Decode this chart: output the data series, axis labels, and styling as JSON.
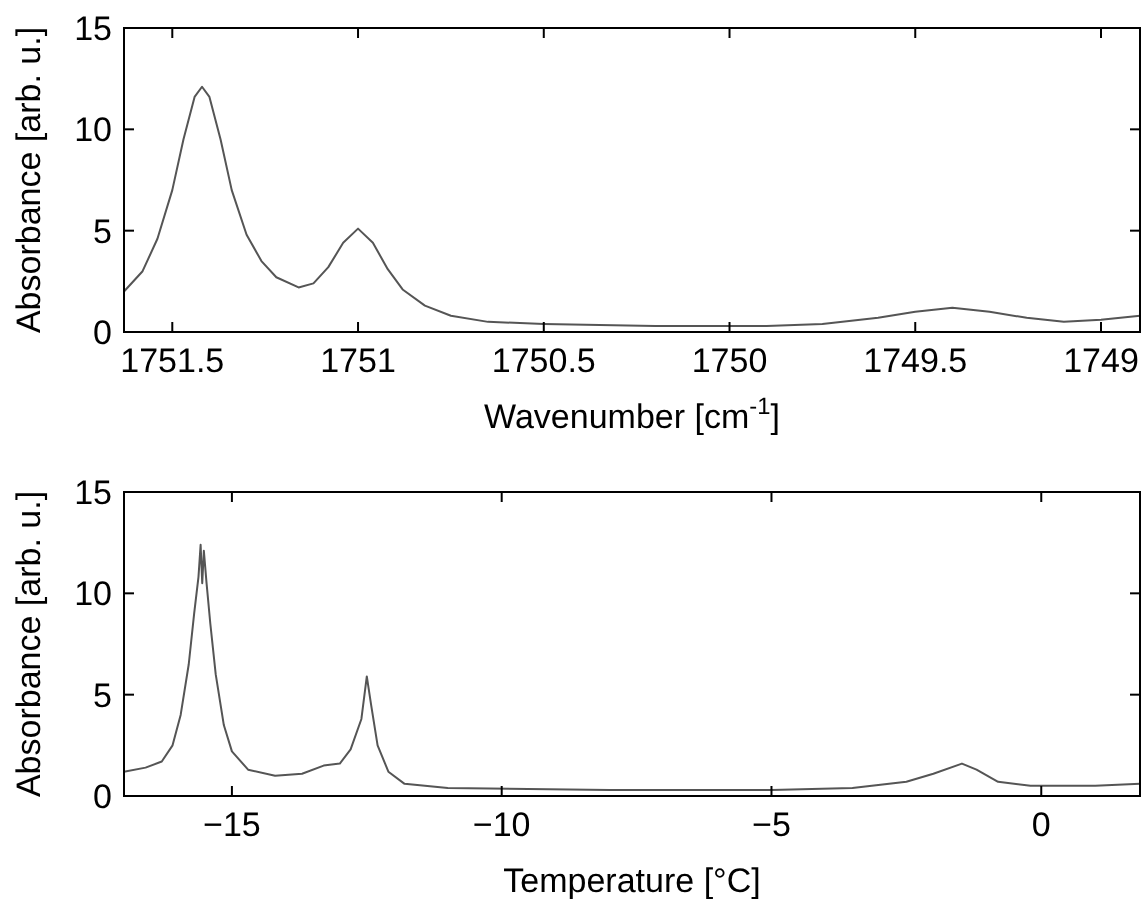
{
  "chart_data": [
    {
      "type": "line",
      "xlabel": "Wavenumber [cm$^{-1}$]",
      "ylabel": "Absorbance [arb. u.]",
      "xlim": [
        1751.63,
        1748.895
      ],
      "xticks": [
        1751.5,
        1751,
        1750.5,
        1750,
        1749.5,
        1749
      ],
      "ylim": [
        0,
        15
      ],
      "yticks": [
        0,
        5,
        10,
        15
      ],
      "marker": "none",
      "line_style": "solid",
      "series": [
        {
          "color": "#555555",
          "x": [
            1751.63,
            1751.58,
            1751.54,
            1751.5,
            1751.47,
            1751.44,
            1751.42,
            1751.4,
            1751.37,
            1751.34,
            1751.3,
            1751.26,
            1751.22,
            1751.16,
            1751.12,
            1751.08,
            1751.04,
            1751,
            1750.96,
            1750.92,
            1750.88,
            1750.82,
            1750.75,
            1750.65,
            1750.5,
            1750.2,
            1749.9,
            1749.75,
            1749.6,
            1749.5,
            1749.4,
            1749.3,
            1749.2,
            1749.1,
            1749,
            1748.895
          ],
          "values": [
            2.0,
            3.0,
            4.6,
            7.0,
            9.5,
            11.6,
            12.1,
            11.6,
            9.5,
            7.0,
            4.8,
            3.5,
            2.7,
            2.2,
            2.4,
            3.2,
            4.4,
            5.1,
            4.4,
            3.1,
            2.1,
            1.3,
            0.8,
            0.5,
            0.4,
            0.3,
            0.3,
            0.4,
            0.7,
            1.0,
            1.2,
            1.0,
            0.7,
            0.5,
            0.6,
            0.8
          ]
        }
      ]
    },
    {
      "type": "line",
      "xlabel": "Temperature [°C]",
      "ylabel": "Absorbance [arb. u.]",
      "xlim": [
        -17,
        1.83
      ],
      "xticks": [
        {
          "value": -15,
          "label": "−15"
        },
        {
          "value": -10,
          "label": "−10"
        },
        {
          "value": -5,
          "label": "−5"
        },
        0
      ],
      "ylim": [
        0,
        15
      ],
      "yticks": [
        0,
        5,
        10,
        15
      ],
      "marker": "none",
      "line_style": "solid",
      "series": [
        {
          "color": "#555555",
          "x": [
            -17,
            -16.6,
            -16.3,
            -16.1,
            -15.95,
            -15.8,
            -15.7,
            -15.62,
            -15.58,
            -15.55,
            -15.52,
            -15.47,
            -15.4,
            -15.3,
            -15.15,
            -15,
            -14.7,
            -14.2,
            -13.7,
            -13.3,
            -13,
            -12.8,
            -12.6,
            -12.5,
            -12.42,
            -12.3,
            -12.1,
            -11.8,
            -11,
            -8,
            -5,
            -3.5,
            -2.5,
            -2,
            -1.47,
            -1.2,
            -0.8,
            -0.2,
            1,
            1.83
          ],
          "values": [
            1.2,
            1.4,
            1.7,
            2.5,
            4,
            6.5,
            9,
            10.8,
            12.4,
            10.5,
            12.1,
            10.5,
            8.5,
            6,
            3.5,
            2.2,
            1.3,
            1.0,
            1.1,
            1.5,
            1.6,
            2.3,
            3.8,
            5.9,
            4.5,
            2.5,
            1.2,
            0.6,
            0.4,
            0.3,
            0.3,
            0.4,
            0.7,
            1.1,
            1.6,
            1.3,
            0.7,
            0.5,
            0.5,
            0.6
          ]
        }
      ]
    }
  ]
}
